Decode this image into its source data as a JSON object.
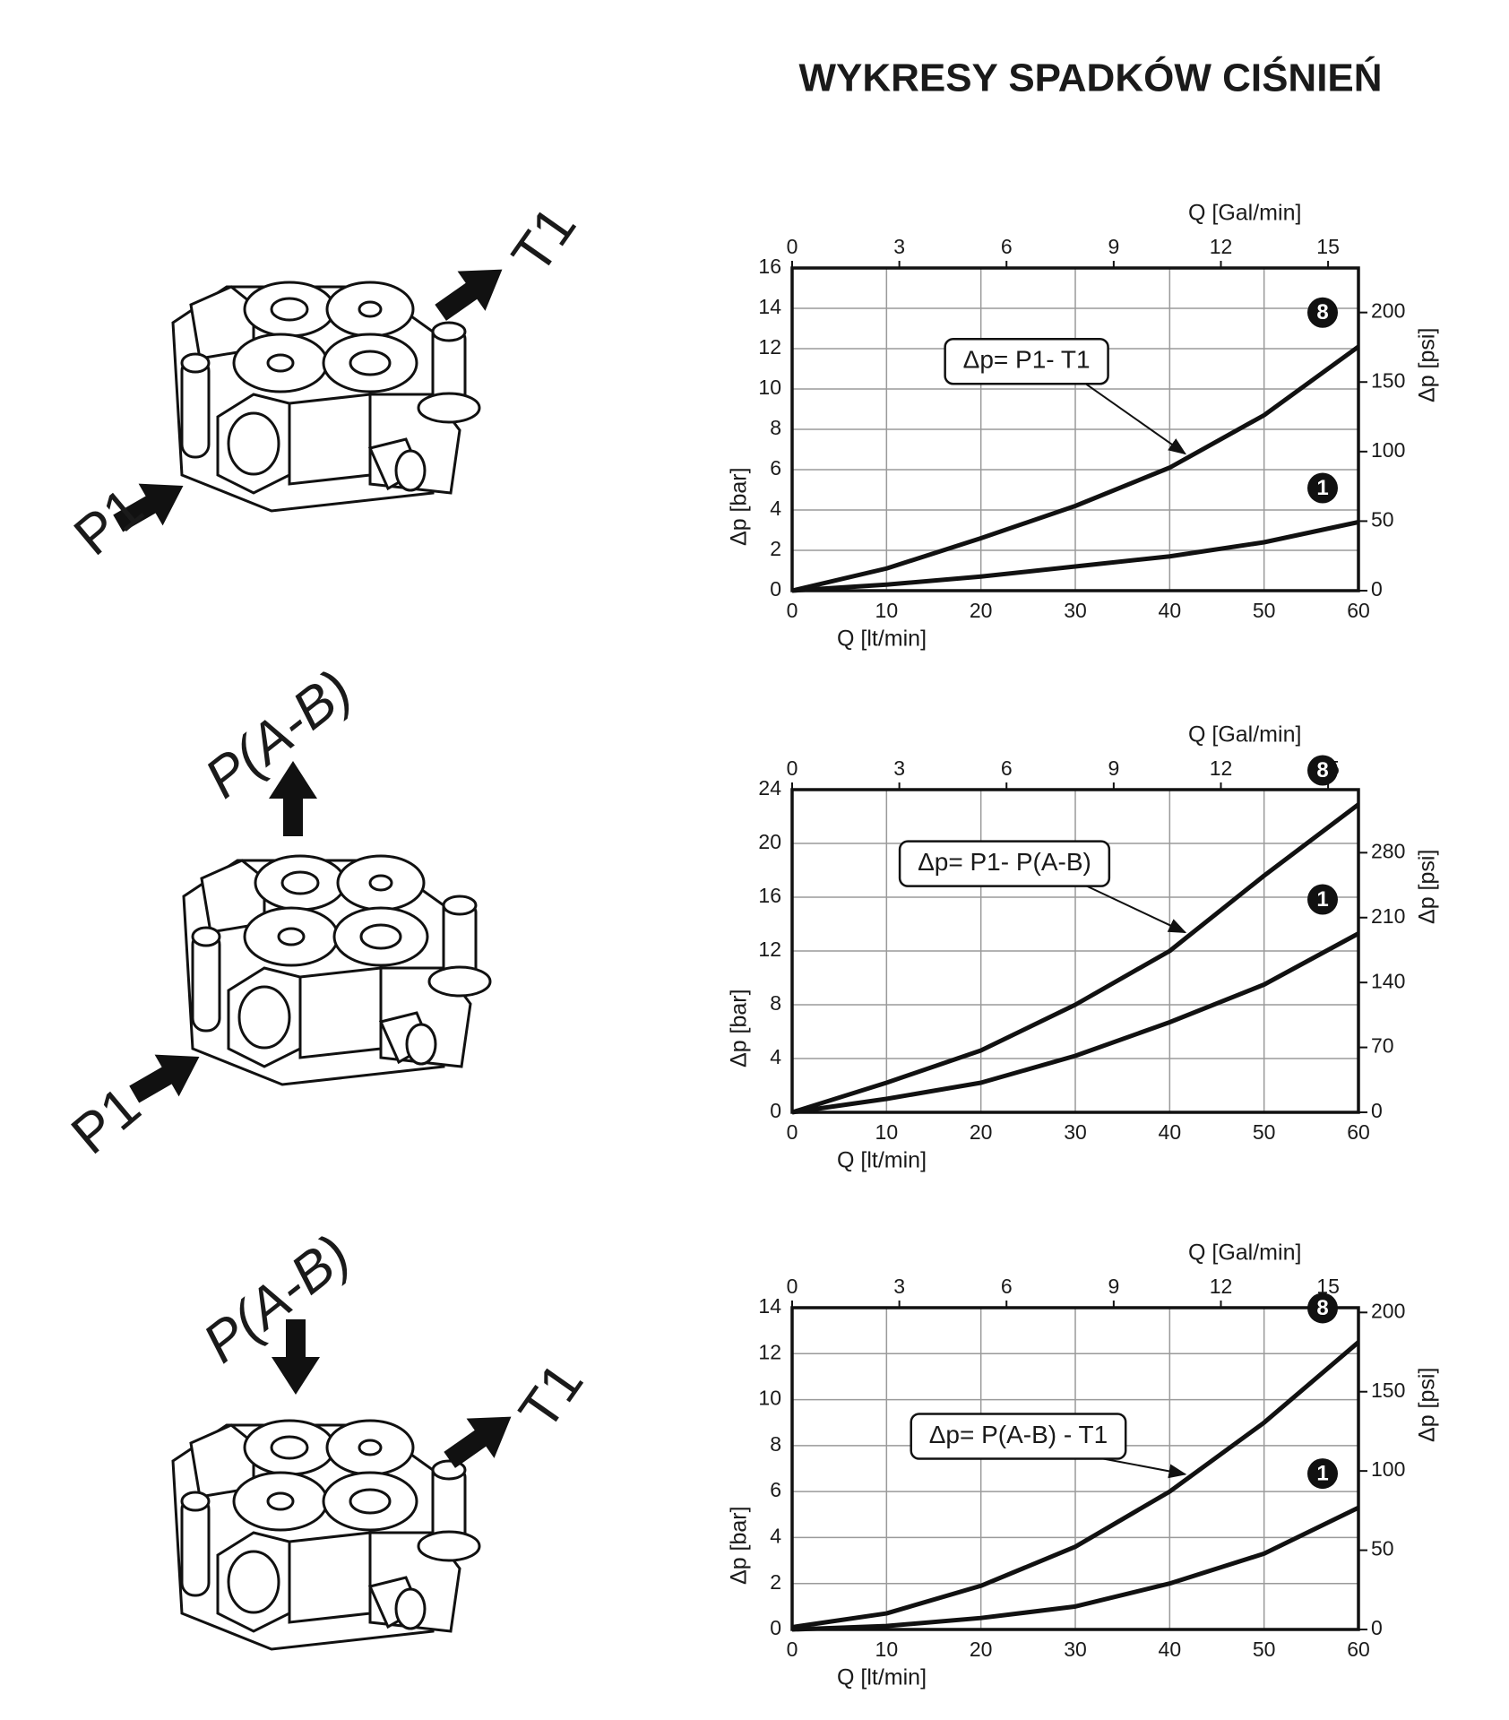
{
  "title": "WYKRESY SPADKÓW CIŚNIEŃ",
  "illustrations": [
    {
      "labels": [
        "P1",
        "T1"
      ]
    },
    {
      "labels": [
        "P(A-B)",
        "P1"
      ]
    },
    {
      "labels": [
        "P(A-B)",
        "T1"
      ]
    }
  ],
  "chart_data": [
    {
      "type": "line",
      "annotation": "Δp= P1- T1",
      "x_label": "Q [lt/min]",
      "y_label": "Δp [bar]",
      "x2_label": "Q [Gal/min]",
      "y2_label": "Δp [psi]",
      "xlim": [
        0,
        60
      ],
      "xticks": [
        0,
        10,
        20,
        30,
        40,
        50,
        60
      ],
      "ylim": [
        0,
        16
      ],
      "yticks": [
        0,
        2,
        4,
        6,
        8,
        10,
        12,
        14,
        16
      ],
      "x2lim": [
        0,
        15.85
      ],
      "x2ticks": [
        0,
        3,
        6,
        9,
        12,
        15
      ],
      "y2lim": [
        0,
        232
      ],
      "y2ticks": [
        0,
        50,
        100,
        150,
        200
      ],
      "grid": true,
      "x": [
        0,
        10,
        20,
        30,
        40,
        50,
        60
      ],
      "series": [
        {
          "name": "8",
          "color": "#111111",
          "values": [
            0,
            1.1,
            2.6,
            4.2,
            6.1,
            8.7,
            12.1
          ]
        },
        {
          "name": "1",
          "color": "#111111",
          "values": [
            0,
            0.3,
            0.7,
            1.2,
            1.7,
            2.4,
            3.4
          ]
        }
      ]
    },
    {
      "type": "line",
      "annotation": "Δp= P1- P(A-B)",
      "x_label": "Q [lt/min]",
      "y_label": "Δp [bar]",
      "x2_label": "Q [Gal/min]",
      "y2_label": "Δp [psi]",
      "xlim": [
        0,
        60
      ],
      "xticks": [
        0,
        10,
        20,
        30,
        40,
        50,
        60
      ],
      "ylim": [
        0,
        24
      ],
      "yticks": [
        0,
        4,
        8,
        12,
        16,
        20,
        24
      ],
      "x2lim": [
        0,
        15.85
      ],
      "x2ticks": [
        0,
        3,
        6,
        9,
        12,
        15
      ],
      "y2lim": [
        0,
        348
      ],
      "y2ticks": [
        0,
        70,
        140,
        210,
        280
      ],
      "grid": true,
      "x": [
        0,
        10,
        20,
        30,
        40,
        50,
        60
      ],
      "series": [
        {
          "name": "8",
          "color": "#111111",
          "values": [
            0,
            2.2,
            4.6,
            8.0,
            12.0,
            17.6,
            22.9
          ]
        },
        {
          "name": "1",
          "color": "#111111",
          "values": [
            0,
            1.0,
            2.2,
            4.2,
            6.7,
            9.5,
            13.3
          ]
        }
      ]
    },
    {
      "type": "line",
      "annotation": "Δp= P(A-B) - T1",
      "x_label": "Q [lt/min]",
      "y_label": "Δp [bar]",
      "x2_label": "Q [Gal/min]",
      "y2_label": "Δp [psi]",
      "xlim": [
        0,
        60
      ],
      "xticks": [
        0,
        10,
        20,
        30,
        40,
        50,
        60
      ],
      "ylim": [
        0,
        14
      ],
      "yticks": [
        0,
        2,
        4,
        6,
        8,
        10,
        12,
        14
      ],
      "x2lim": [
        0,
        15.85
      ],
      "x2ticks": [
        0,
        3,
        6,
        9,
        12,
        15
      ],
      "y2lim": [
        0,
        203
      ],
      "y2ticks": [
        0,
        50,
        100,
        150,
        200
      ],
      "grid": true,
      "x": [
        0,
        10,
        20,
        30,
        40,
        50,
        60
      ],
      "series": [
        {
          "name": "8",
          "color": "#111111",
          "values": [
            0.1,
            0.7,
            1.9,
            3.6,
            6.0,
            9.0,
            12.5
          ]
        },
        {
          "name": "1",
          "color": "#111111",
          "values": [
            0,
            0.15,
            0.5,
            1.0,
            2.0,
            3.3,
            5.3
          ]
        }
      ]
    }
  ]
}
